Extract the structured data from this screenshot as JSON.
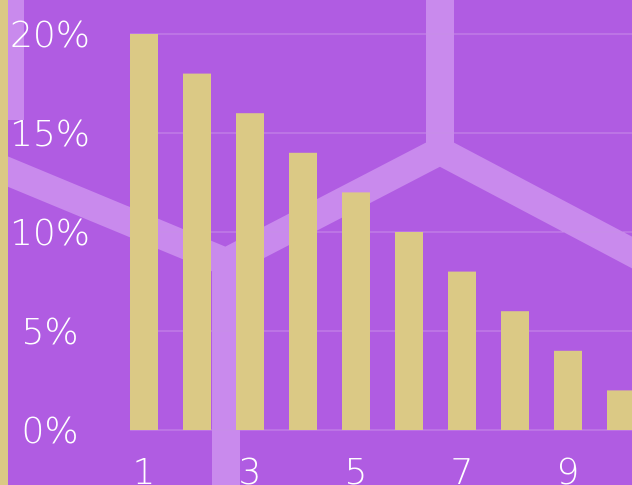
{
  "colors": {
    "background": "#b05ce2",
    "bar": "#dbc985",
    "text": "#ffffff",
    "grid": "#c88de8",
    "decor": "#c98aed"
  },
  "chart_data": {
    "type": "bar",
    "categories": [
      "1",
      "2",
      "3",
      "4",
      "5",
      "6",
      "7",
      "8",
      "9",
      "10"
    ],
    "x_tick_labels": [
      "1",
      "3",
      "5",
      "7",
      "9"
    ],
    "values": [
      20,
      18,
      16,
      14,
      12,
      10,
      8,
      6,
      4,
      2
    ],
    "y_tick_labels": [
      "0%",
      "5%",
      "10%",
      "15%",
      "20%"
    ],
    "y_ticks": [
      0,
      5,
      10,
      15,
      20
    ],
    "ylim": [
      0,
      20
    ],
    "value_format": "percent",
    "grid": true,
    "legend": "none"
  }
}
